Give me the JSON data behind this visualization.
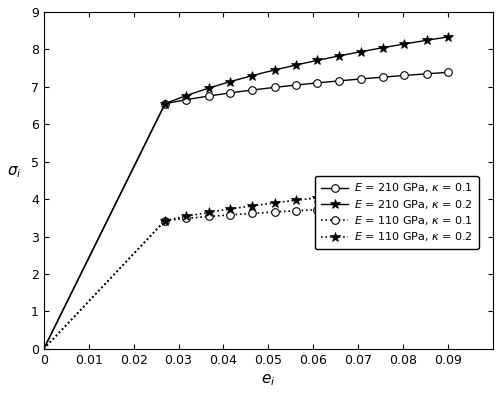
{
  "title": "",
  "xlabel_text": "$e_i$",
  "ylabel_text": "$\\sigma_i$",
  "xlim": [
    0,
    0.1
  ],
  "ylim": [
    0,
    9
  ],
  "xticks": [
    0,
    0.01,
    0.02,
    0.03,
    0.04,
    0.05,
    0.06,
    0.07,
    0.08,
    0.09
  ],
  "yticks": [
    0,
    1,
    2,
    3,
    4,
    5,
    6,
    7,
    8,
    9
  ],
  "xtick_labels": [
    "0",
    "0.01",
    "0.02",
    "0.03",
    "0.04",
    "0.05",
    "0.06",
    "0.07",
    "0.08",
    "0.09"
  ],
  "E210_yield_strain": 0.027,
  "E210_yield_stress": 6.55,
  "E110_yield_strain": 0.027,
  "E110_yield_stress": 3.43,
  "kappa1": 0.1,
  "kappa2": 0.2,
  "n_markers": 14,
  "legend_labels": [
    "$-\\circ-$  $E$ = 210 GPa, $\\kappa$ = 0.1",
    "$-*-$  $E$ = 210 GPa, $\\kappa$ = 0.2",
    "$\\cdots\\circ\\cdots$  $E$ = 110 GPa, $\\kappa$ = 0.1",
    "$\\cdots*\\cdots$  $E$ = 110 GPa, $\\kappa$ = 0.2"
  ],
  "figsize": [
    5.0,
    3.95
  ],
  "dpi": 100
}
